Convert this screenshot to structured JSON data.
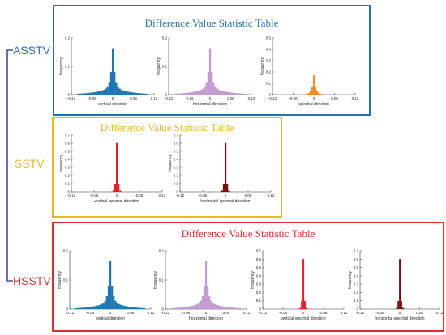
{
  "colors": {
    "asstv": "#2a6fb5",
    "sstv": "#e6b630",
    "hsstv": "#d8302f",
    "bracket": "#4a4aa0",
    "blue_bars": "#1f77b4",
    "violet_bars": "#c39bd3",
    "orange_bars": "#f28c1a",
    "red_bars": "#ee1c25",
    "darkred_bars": "#7a0e0e"
  },
  "methods": [
    {
      "id": "asstv",
      "label": "ASSTV",
      "title": "Difference Value Statistic Table",
      "panels": [
        {
          "xlabel": "vertical direction",
          "ylabel": "frequency",
          "color": "blue_bars",
          "shape": "wide",
          "ylim": [
            0,
            0.2
          ],
          "yticks": [
            "0",
            "0.1",
            "0.2"
          ]
        },
        {
          "xlabel": "horizontal direction",
          "ylabel": "frequency",
          "color": "violet_bars",
          "shape": "wide",
          "ylim": [
            0,
            0.2
          ],
          "yticks": [
            "0",
            "0.1",
            "0.2"
          ]
        },
        {
          "xlabel": "spectral direction",
          "ylabel": "frequency",
          "color": "orange_bars",
          "shape": "medium",
          "ylim": [
            0,
            0.5
          ],
          "yticks": [
            "0",
            "0.1",
            "0.2",
            "0.3",
            "0.4",
            "0.5"
          ]
        }
      ]
    },
    {
      "id": "sstv",
      "label": "SSTV",
      "title": "Difference Value Statistic Table",
      "panels": [
        {
          "xlabel": "vertical-spectral direction",
          "ylabel": "frequency",
          "color": "red_bars",
          "shape": "narrow",
          "ylim": [
            0,
            0.7
          ],
          "yticks": [
            "0",
            "0.1",
            "0.2",
            "0.3",
            "0.4",
            "0.5",
            "0.6",
            "0.7"
          ]
        },
        {
          "xlabel": "horizontal-spectral direction",
          "ylabel": "frequency",
          "color": "darkred_bars",
          "shape": "narrow",
          "ylim": [
            0,
            0.7
          ],
          "yticks": [
            "0",
            "0.1",
            "0.2",
            "0.3",
            "0.4",
            "0.5",
            "0.6",
            "0.7"
          ]
        }
      ]
    },
    {
      "id": "hsstv",
      "label": "HSSTV",
      "title": "Difference Value Statistic Table",
      "panels": [
        {
          "xlabel": "vertical direction",
          "ylabel": "frequency",
          "color": "blue_bars",
          "shape": "wide",
          "ylim": [
            0,
            0.2
          ],
          "yticks": [
            "0",
            "0.1",
            "0.2"
          ]
        },
        {
          "xlabel": "horizontal direction",
          "ylabel": "frequency",
          "color": "violet_bars",
          "shape": "wide",
          "ylim": [
            0,
            0.2
          ],
          "yticks": [
            "0",
            "0.1",
            "0.2"
          ]
        },
        {
          "xlabel": "vertical-spectral direction",
          "ylabel": "frequency",
          "color": "red_bars",
          "shape": "narrow",
          "ylim": [
            0,
            0.7
          ],
          "yticks": [
            "0",
            "0.1",
            "0.2",
            "0.3",
            "0.4",
            "0.5",
            "0.6",
            "0.7"
          ]
        },
        {
          "xlabel": "horizontal-spectral direction",
          "ylabel": "frequency",
          "color": "darkred_bars",
          "shape": "narrow",
          "ylim": [
            0,
            0.7
          ],
          "yticks": [
            "0",
            "0.1",
            "0.2",
            "0.3",
            "0.4",
            "0.5",
            "0.6",
            "0.7"
          ]
        }
      ]
    }
  ],
  "xticks": [
    "-0.12",
    "-0.06",
    "0",
    "0.06",
    "0.12"
  ]
}
